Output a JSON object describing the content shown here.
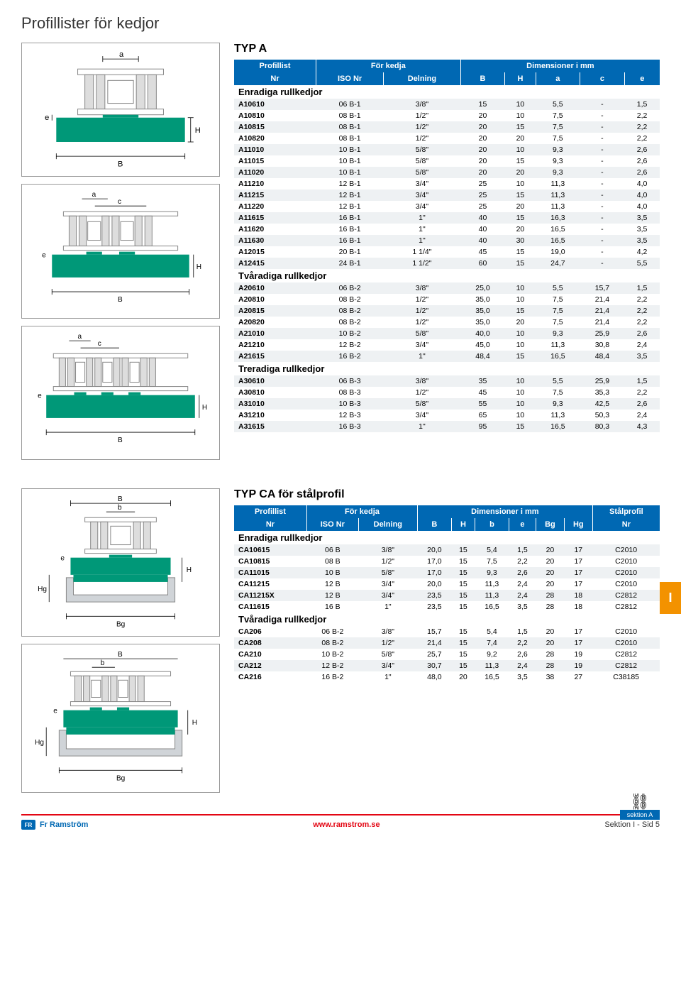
{
  "page_title": "Profillister för kedjor",
  "typ_a": {
    "title": "TYP A",
    "header_groups": [
      "Profillist",
      "För kedja",
      "Dimensioner i mm"
    ],
    "header_cols": [
      "Nr",
      "ISO Nr",
      "Delning",
      "B",
      "H",
      "a",
      "c",
      "e"
    ],
    "sections": [
      {
        "title": "Enradiga rullkedjor",
        "rows": [
          [
            "A10610",
            "06 B-1",
            "3/8\"",
            "15",
            "10",
            "5,5",
            "-",
            "1,5"
          ],
          [
            "A10810",
            "08 B-1",
            "1/2\"",
            "20",
            "10",
            "7,5",
            "-",
            "2,2"
          ],
          [
            "A10815",
            "08 B-1",
            "1/2\"",
            "20",
            "15",
            "7,5",
            "-",
            "2,2"
          ],
          [
            "A10820",
            "08 B-1",
            "1/2\"",
            "20",
            "20",
            "7,5",
            "-",
            "2,2"
          ],
          [
            "A11010",
            "10 B-1",
            "5/8\"",
            "20",
            "10",
            "9,3",
            "-",
            "2,6"
          ],
          [
            "A11015",
            "10 B-1",
            "5/8\"",
            "20",
            "15",
            "9,3",
            "-",
            "2,6"
          ],
          [
            "A11020",
            "10 B-1",
            "5/8\"",
            "20",
            "20",
            "9,3",
            "-",
            "2,6"
          ],
          [
            "A11210",
            "12 B-1",
            "3/4\"",
            "25",
            "10",
            "11,3",
            "-",
            "4,0"
          ],
          [
            "A11215",
            "12 B-1",
            "3/4\"",
            "25",
            "15",
            "11,3",
            "-",
            "4,0"
          ],
          [
            "A11220",
            "12 B-1",
            "3/4\"",
            "25",
            "20",
            "11,3",
            "-",
            "4,0"
          ],
          [
            "A11615",
            "16 B-1",
            "1\"",
            "40",
            "15",
            "16,3",
            "-",
            "3,5"
          ],
          [
            "A11620",
            "16 B-1",
            "1\"",
            "40",
            "20",
            "16,5",
            "-",
            "3,5"
          ],
          [
            "A11630",
            "16 B-1",
            "1\"",
            "40",
            "30",
            "16,5",
            "-",
            "3,5"
          ],
          [
            "A12015",
            "20 B-1",
            "1 1/4\"",
            "45",
            "15",
            "19,0",
            "-",
            "4,2"
          ],
          [
            "A12415",
            "24 B-1",
            "1 1/2\"",
            "60",
            "15",
            "24,7",
            "-",
            "5,5"
          ]
        ]
      },
      {
        "title": "Tvåradiga rullkedjor",
        "rows": [
          [
            "A20610",
            "06 B-2",
            "3/8\"",
            "25,0",
            "10",
            "5,5",
            "15,7",
            "1,5"
          ],
          [
            "A20810",
            "08 B-2",
            "1/2\"",
            "35,0",
            "10",
            "7,5",
            "21,4",
            "2,2"
          ],
          [
            "A20815",
            "08 B-2",
            "1/2\"",
            "35,0",
            "15",
            "7,5",
            "21,4",
            "2,2"
          ],
          [
            "A20820",
            "08 B-2",
            "1/2\"",
            "35,0",
            "20",
            "7,5",
            "21,4",
            "2,2"
          ],
          [
            "A21010",
            "10 B-2",
            "5/8\"",
            "40,0",
            "10",
            "9,3",
            "25,9",
            "2,6"
          ],
          [
            "A21210",
            "12 B-2",
            "3/4\"",
            "45,0",
            "10",
            "11,3",
            "30,8",
            "2,4"
          ],
          [
            "A21615",
            "16 B-2",
            "1\"",
            "48,4",
            "15",
            "16,5",
            "48,4",
            "3,5"
          ]
        ]
      },
      {
        "title": "Treradiga rullkedjor",
        "rows": [
          [
            "A30610",
            "06 B-3",
            "3/8\"",
            "35",
            "10",
            "5,5",
            "25,9",
            "1,5"
          ],
          [
            "A30810",
            "08 B-3",
            "1/2\"",
            "45",
            "10",
            "7,5",
            "35,3",
            "2,2"
          ],
          [
            "A31010",
            "10 B-3",
            "5/8\"",
            "55",
            "10",
            "9,3",
            "42,5",
            "2,6"
          ],
          [
            "A31210",
            "12 B-3",
            "3/4\"",
            "65",
            "10",
            "11,3",
            "50,3",
            "2,4"
          ],
          [
            "A31615",
            "16 B-3",
            "1\"",
            "95",
            "15",
            "16,5",
            "80,3",
            "4,3"
          ]
        ]
      }
    ]
  },
  "typ_ca": {
    "title": "TYP CA  för stålprofil",
    "header_groups": [
      "Profillist",
      "För kedja",
      "Dimensioner i mm",
      "Stålprofil"
    ],
    "header_cols": [
      "Nr",
      "ISO Nr",
      "Delning",
      "B",
      "H",
      "b",
      "e",
      "Bg",
      "Hg",
      "Nr"
    ],
    "sections": [
      {
        "title": "Enradiga rullkedjor",
        "rows": [
          [
            "CA10615",
            "06 B",
            "3/8\"",
            "20,0",
            "15",
            "5,4",
            "1,5",
            "20",
            "17",
            "C2010"
          ],
          [
            "CA10815",
            "08 B",
            "1/2\"",
            "17,0",
            "15",
            "7,5",
            "2,2",
            "20",
            "17",
            "C2010"
          ],
          [
            "CA11015",
            "10 B",
            "5/8\"",
            "17,0",
            "15",
            "9,3",
            "2,6",
            "20",
            "17",
            "C2010"
          ],
          [
            "CA11215",
            "12 B",
            "3/4\"",
            "20,0",
            "15",
            "11,3",
            "2,4",
            "20",
            "17",
            "C2010"
          ],
          [
            "CA11215X",
            "12 B",
            "3/4\"",
            "23,5",
            "15",
            "11,3",
            "2,4",
            "28",
            "18",
            "C2812"
          ],
          [
            "CA11615",
            "16 B",
            "1\"",
            "23,5",
            "15",
            "16,5",
            "3,5",
            "28",
            "18",
            "C2812"
          ]
        ]
      },
      {
        "title": "Tvåradiga rullkedjor",
        "rows": [
          [
            "CA206",
            "06 B-2",
            "3/8\"",
            "15,7",
            "15",
            "5,4",
            "1,5",
            "20",
            "17",
            "C2010"
          ],
          [
            "CA208",
            "08 B-2",
            "1/2\"",
            "21,4",
            "15",
            "7,4",
            "2,2",
            "20",
            "17",
            "C2010"
          ],
          [
            "CA210",
            "10 B-2",
            "5/8\"",
            "25,7",
            "15",
            "9,2",
            "2,6",
            "28",
            "19",
            "C2812"
          ],
          [
            "CA212",
            "12 B-2",
            "3/4\"",
            "30,7",
            "15",
            "11,3",
            "2,4",
            "28",
            "19",
            "C2812"
          ],
          [
            "CA216",
            "16 B-2",
            "1\"",
            "48,0",
            "20",
            "16,5",
            "3,5",
            "38",
            "27",
            "C38185"
          ]
        ]
      }
    ]
  },
  "diagram_labels": {
    "a": "a",
    "B": "B",
    "H": "H",
    "e": "e",
    "c": "c",
    "b": "b",
    "Bg": "Bg",
    "Hg": "Hg"
  },
  "colors": {
    "header_bg": "#0068b3",
    "header_fg": "#ffffff",
    "profile_green": "#009878",
    "row_alt": "#eef1f3",
    "accent_orange": "#f39200",
    "accent_red": "#e30613"
  },
  "side_tab": "I",
  "sektion_label": "sektion A",
  "footer": {
    "brand": "Fr Ramström",
    "url": "www.ramstrom.se",
    "page": "Sektion I - Sid 5"
  }
}
